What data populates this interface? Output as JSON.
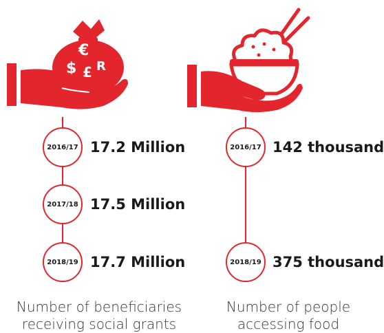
{
  "accent_color": "#e3262d",
  "left": {
    "icon": "money-bag-in-hand-icon",
    "bag_symbols": [
      "€",
      "$",
      "£",
      "R"
    ],
    "entries": [
      {
        "year": "2016/17",
        "value": "17.2 Million"
      },
      {
        "year": "2017/18",
        "value": "17.5 Million"
      },
      {
        "year": "2018/19",
        "value": "17.7 Million"
      }
    ],
    "caption_line1": "Number of beneficiaries",
    "caption_line2": "receiving social grants"
  },
  "right": {
    "icon": "food-bowl-in-hand-icon",
    "entries": [
      {
        "year": "2016/17",
        "value": "142 thousand"
      },
      {
        "year": "2018/19",
        "value": "375 thousand"
      }
    ],
    "caption_line1": "Number of people",
    "caption_line2": "accessing food"
  }
}
